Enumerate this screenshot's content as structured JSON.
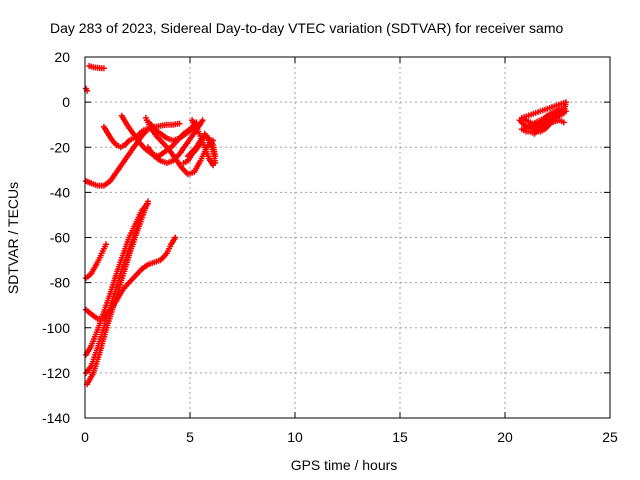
{
  "chart_data": {
    "type": "scatter",
    "title": "Day 283 of 2023, Sidereal Day-to-day VTEC variation (SDTVAR) for receiver samo",
    "xlabel": "GPS time / hours",
    "ylabel": "SDTVAR / TECUs",
    "xlim": [
      0,
      25
    ],
    "ylim": [
      -140,
      20
    ],
    "xticks": [
      0,
      5,
      10,
      15,
      20,
      25
    ],
    "yticks": [
      -140,
      -120,
      -100,
      -80,
      -60,
      -40,
      -20,
      0,
      20
    ],
    "grid": true,
    "marker": "+",
    "color": "#ff0000",
    "series": [
      {
        "name": "arc-top-short",
        "points": [
          [
            0.2,
            16
          ],
          [
            0.4,
            15.5
          ],
          [
            0.6,
            15.2
          ],
          [
            0.8,
            15
          ],
          [
            0.9,
            15
          ]
        ]
      },
      {
        "name": "arc-start-near-zero",
        "points": [
          [
            0.05,
            6
          ],
          [
            0.1,
            5
          ]
        ]
      },
      {
        "name": "arc-u-shape",
        "points": [
          [
            0.05,
            -35
          ],
          [
            0.3,
            -36
          ],
          [
            0.6,
            -37
          ],
          [
            0.9,
            -37
          ],
          [
            1.2,
            -35
          ],
          [
            1.5,
            -31
          ],
          [
            1.8,
            -27
          ],
          [
            2.1,
            -23
          ],
          [
            2.4,
            -19
          ],
          [
            2.7,
            -15
          ],
          [
            3.0,
            -12
          ],
          [
            3.3,
            -11
          ],
          [
            3.6,
            -10.5
          ],
          [
            3.9,
            -10
          ],
          [
            4.2,
            -10
          ],
          [
            4.5,
            -9.5
          ]
        ]
      },
      {
        "name": "arc-descend-1",
        "points": [
          [
            0.9,
            -11
          ],
          [
            1.1,
            -14
          ],
          [
            1.3,
            -17
          ],
          [
            1.5,
            -19
          ],
          [
            1.7,
            -20
          ],
          [
            1.9,
            -19
          ],
          [
            2.1,
            -17
          ],
          [
            2.3,
            -16
          ],
          [
            2.5,
            -15
          ],
          [
            2.7,
            -13
          ],
          [
            2.9,
            -12
          ]
        ]
      },
      {
        "name": "arc-descend-2",
        "points": [
          [
            1.75,
            -6
          ],
          [
            2.0,
            -10
          ],
          [
            2.3,
            -14
          ],
          [
            2.6,
            -18
          ],
          [
            2.9,
            -21
          ],
          [
            3.2,
            -23
          ],
          [
            3.5,
            -24
          ],
          [
            3.8,
            -22
          ],
          [
            4.1,
            -20
          ],
          [
            4.4,
            -17
          ],
          [
            4.7,
            -14
          ],
          [
            5.0,
            -12
          ],
          [
            5.3,
            -9
          ]
        ]
      },
      {
        "name": "arc-descend-3",
        "points": [
          [
            2.9,
            -7
          ],
          [
            3.1,
            -11
          ],
          [
            3.4,
            -15
          ],
          [
            3.7,
            -18
          ],
          [
            4.0,
            -21
          ],
          [
            4.3,
            -25
          ],
          [
            4.6,
            -29
          ],
          [
            4.9,
            -32
          ],
          [
            5.2,
            -31
          ],
          [
            5.5,
            -26
          ],
          [
            5.8,
            -20
          ],
          [
            6.1,
            -17
          ]
        ]
      },
      {
        "name": "arc-descend-4",
        "points": [
          [
            3.05,
            -9
          ],
          [
            3.3,
            -12
          ],
          [
            3.6,
            -14
          ],
          [
            3.9,
            -16
          ],
          [
            4.2,
            -17
          ],
          [
            4.5,
            -16
          ],
          [
            4.8,
            -14
          ],
          [
            5.1,
            -12
          ]
        ]
      },
      {
        "name": "arc-swoop-1",
        "points": [
          [
            3.0,
            -20
          ],
          [
            3.3,
            -24
          ],
          [
            3.6,
            -26
          ],
          [
            3.9,
            -27
          ],
          [
            4.2,
            -26
          ],
          [
            4.5,
            -23
          ],
          [
            4.8,
            -19
          ],
          [
            5.1,
            -15
          ],
          [
            5.4,
            -11
          ],
          [
            5.6,
            -8
          ]
        ]
      },
      {
        "name": "arc-swoop-2",
        "points": [
          [
            4.7,
            -27
          ],
          [
            4.9,
            -26
          ],
          [
            5.1,
            -23
          ],
          [
            5.3,
            -21
          ],
          [
            5.5,
            -18
          ],
          [
            5.7,
            -14
          ],
          [
            5.9,
            -17
          ],
          [
            6.1,
            -22
          ],
          [
            6.2,
            -27
          ]
        ]
      },
      {
        "name": "arc-swoop-3",
        "points": [
          [
            5.1,
            -8
          ],
          [
            5.3,
            -11
          ],
          [
            5.5,
            -15
          ],
          [
            5.7,
            -20
          ],
          [
            5.9,
            -25
          ],
          [
            6.1,
            -28
          ]
        ]
      },
      {
        "name": "arc-swoop-4",
        "points": [
          [
            4.9,
            -24
          ],
          [
            5.1,
            -22
          ],
          [
            5.3,
            -20
          ],
          [
            5.5,
            -17
          ],
          [
            5.7,
            -15
          ],
          [
            5.9,
            -16
          ],
          [
            6.1,
            -19
          ],
          [
            6.2,
            -24
          ]
        ]
      },
      {
        "name": "arc-steep-1",
        "points": [
          [
            0.05,
            -112
          ],
          [
            0.3,
            -108
          ],
          [
            0.6,
            -101
          ],
          [
            0.9,
            -93
          ],
          [
            1.2,
            -85
          ],
          [
            1.5,
            -76
          ],
          [
            1.8,
            -68
          ],
          [
            2.1,
            -60
          ],
          [
            2.4,
            -54
          ],
          [
            2.7,
            -48
          ],
          [
            3.0,
            -45
          ]
        ]
      },
      {
        "name": "arc-steep-2",
        "points": [
          [
            0.1,
            -125
          ],
          [
            0.4,
            -120
          ],
          [
            0.7,
            -111
          ],
          [
            1.0,
            -101
          ],
          [
            1.3,
            -92
          ],
          [
            1.6,
            -83
          ],
          [
            1.9,
            -74
          ],
          [
            2.2,
            -65
          ],
          [
            2.5,
            -57
          ],
          [
            2.8,
            -49
          ],
          [
            3.0,
            -44
          ]
        ]
      },
      {
        "name": "arc-steep-3",
        "points": [
          [
            0.05,
            -120
          ],
          [
            0.3,
            -117
          ],
          [
            0.6,
            -109
          ],
          [
            0.9,
            -100
          ],
          [
            1.2,
            -91
          ],
          [
            1.5,
            -82
          ],
          [
            1.8,
            -73
          ],
          [
            2.1,
            -65
          ],
          [
            2.4,
            -57
          ],
          [
            2.7,
            -50
          ],
          [
            2.95,
            -45
          ]
        ]
      },
      {
        "name": "arc-low-left",
        "points": [
          [
            0.05,
            -78
          ],
          [
            0.3,
            -76
          ],
          [
            0.6,
            -71
          ],
          [
            0.8,
            -67
          ],
          [
            1.0,
            -63
          ]
        ]
      },
      {
        "name": "arc-dip-right",
        "points": [
          [
            0.05,
            -92
          ],
          [
            0.3,
            -94
          ],
          [
            0.6,
            -96
          ],
          [
            0.9,
            -96
          ],
          [
            1.2,
            -92
          ],
          [
            1.5,
            -88
          ],
          [
            1.8,
            -83
          ],
          [
            2.1,
            -80
          ],
          [
            2.4,
            -77
          ],
          [
            2.7,
            -74
          ],
          [
            3.0,
            -72
          ],
          [
            3.3,
            -71
          ],
          [
            3.6,
            -70
          ],
          [
            3.9,
            -67
          ],
          [
            4.1,
            -63
          ],
          [
            4.3,
            -60
          ]
        ]
      },
      {
        "name": "cluster-right",
        "points": [
          [
            20.7,
            -8
          ],
          [
            20.9,
            -10
          ],
          [
            21.1,
            -11
          ],
          [
            21.3,
            -12
          ],
          [
            21.5,
            -13
          ],
          [
            21.7,
            -13
          ],
          [
            21.9,
            -12
          ],
          [
            22.1,
            -10
          ],
          [
            22.3,
            -8
          ],
          [
            22.5,
            -6
          ],
          [
            22.7,
            -5
          ],
          [
            22.9,
            -4
          ],
          [
            20.8,
            -12
          ],
          [
            21.0,
            -13
          ],
          [
            21.2,
            -13
          ],
          [
            21.4,
            -14
          ],
          [
            21.6,
            -12
          ],
          [
            21.8,
            -10
          ],
          [
            22.0,
            -9
          ],
          [
            22.2,
            -8
          ],
          [
            22.4,
            -7
          ],
          [
            22.6,
            -6
          ],
          [
            22.8,
            -5
          ],
          [
            22.9,
            0
          ],
          [
            20.8,
            -7
          ],
          [
            21.0,
            -8
          ],
          [
            21.2,
            -9
          ],
          [
            21.4,
            -11
          ],
          [
            21.6,
            -10
          ],
          [
            21.8,
            -8
          ],
          [
            22.0,
            -6
          ],
          [
            22.2,
            -5
          ],
          [
            22.4,
            -4
          ],
          [
            22.6,
            -3
          ],
          [
            22.8,
            -3
          ],
          [
            21.0,
            -11
          ],
          [
            21.4,
            -12
          ],
          [
            21.8,
            -11
          ],
          [
            22.2,
            -9
          ],
          [
            22.6,
            -8
          ],
          [
            22.8,
            -9
          ]
        ]
      }
    ]
  }
}
